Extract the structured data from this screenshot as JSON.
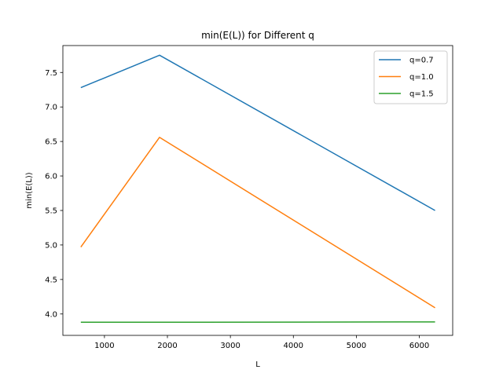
{
  "chart_data": {
    "type": "line",
    "title": "min(E(L)) for Different q",
    "xlabel": "L",
    "ylabel": "min(E(L))",
    "xlim": [
      340,
      6530
    ],
    "ylim": [
      3.69,
      7.89
    ],
    "xticks": [
      1000,
      2000,
      3000,
      4000,
      5000,
      6000
    ],
    "xtick_labels": [
      "1000",
      "2000",
      "3000",
      "4000",
      "5000",
      "6000"
    ],
    "yticks": [
      4.0,
      4.5,
      5.0,
      5.5,
      6.0,
      6.5,
      7.0,
      7.5
    ],
    "ytick_labels": [
      "4.0",
      "4.5",
      "5.0",
      "5.5",
      "6.0",
      "6.5",
      "7.0",
      "7.5"
    ],
    "grid": false,
    "legend_position": "top-right",
    "x": [
      625,
      1875,
      6250
    ],
    "series": [
      {
        "name": "q=0.7",
        "color": "#1f77b4",
        "values": [
          7.28,
          7.75,
          5.5
        ]
      },
      {
        "name": "q=1.0",
        "color": "#ff7f0e",
        "values": [
          4.97,
          6.56,
          4.09
        ]
      },
      {
        "name": "q=1.5",
        "color": "#2ca02c",
        "values": [
          3.88,
          3.88,
          3.885
        ]
      }
    ]
  }
}
